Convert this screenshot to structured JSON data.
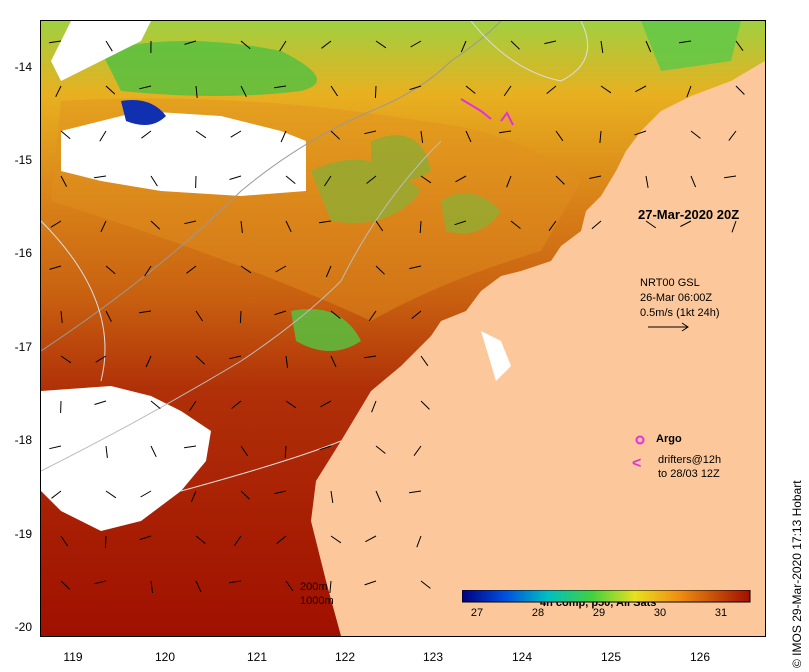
{
  "axes": {
    "lat_ticks": [
      "-14",
      "-15",
      "-16",
      "-17",
      "-18",
      "-19",
      "-20"
    ],
    "lon_ticks": [
      "119",
      "120",
      "121",
      "122",
      "123",
      "124",
      "125",
      "126"
    ]
  },
  "overlay_date": "27-Mar-2020 20Z",
  "current_legend": {
    "line1": "NRT00 GSL",
    "line2": "26-Mar 06:00Z",
    "line3": "0.5m/s (1kt 24h)"
  },
  "argo_legend": {
    "label": "Argo",
    "color": "#e030e0"
  },
  "drifter_legend": {
    "line1": "drifters@12h",
    "line2": "to 28/03 12Z",
    "symbol": "<",
    "color": "#e030e0"
  },
  "depth_legend": {
    "line1": "200m",
    "line2": "1000m"
  },
  "colorbar": {
    "title": "4h comp, p50, All Sats",
    "ticks": [
      "27",
      "28",
      "29",
      "30",
      "31"
    ],
    "range": [
      26.6,
      31.5
    ]
  },
  "credit": "IMOS 29-Mar-2020 17:13 Hobart",
  "colors": {
    "land": "#fcc89b",
    "cloud": "#ffffff",
    "sst_hot": "#a01000",
    "sst_warm": "#d87010",
    "sst_mid": "#e8a020",
    "sst_cool": "#70c840",
    "sst_cold": "#1020a0"
  }
}
